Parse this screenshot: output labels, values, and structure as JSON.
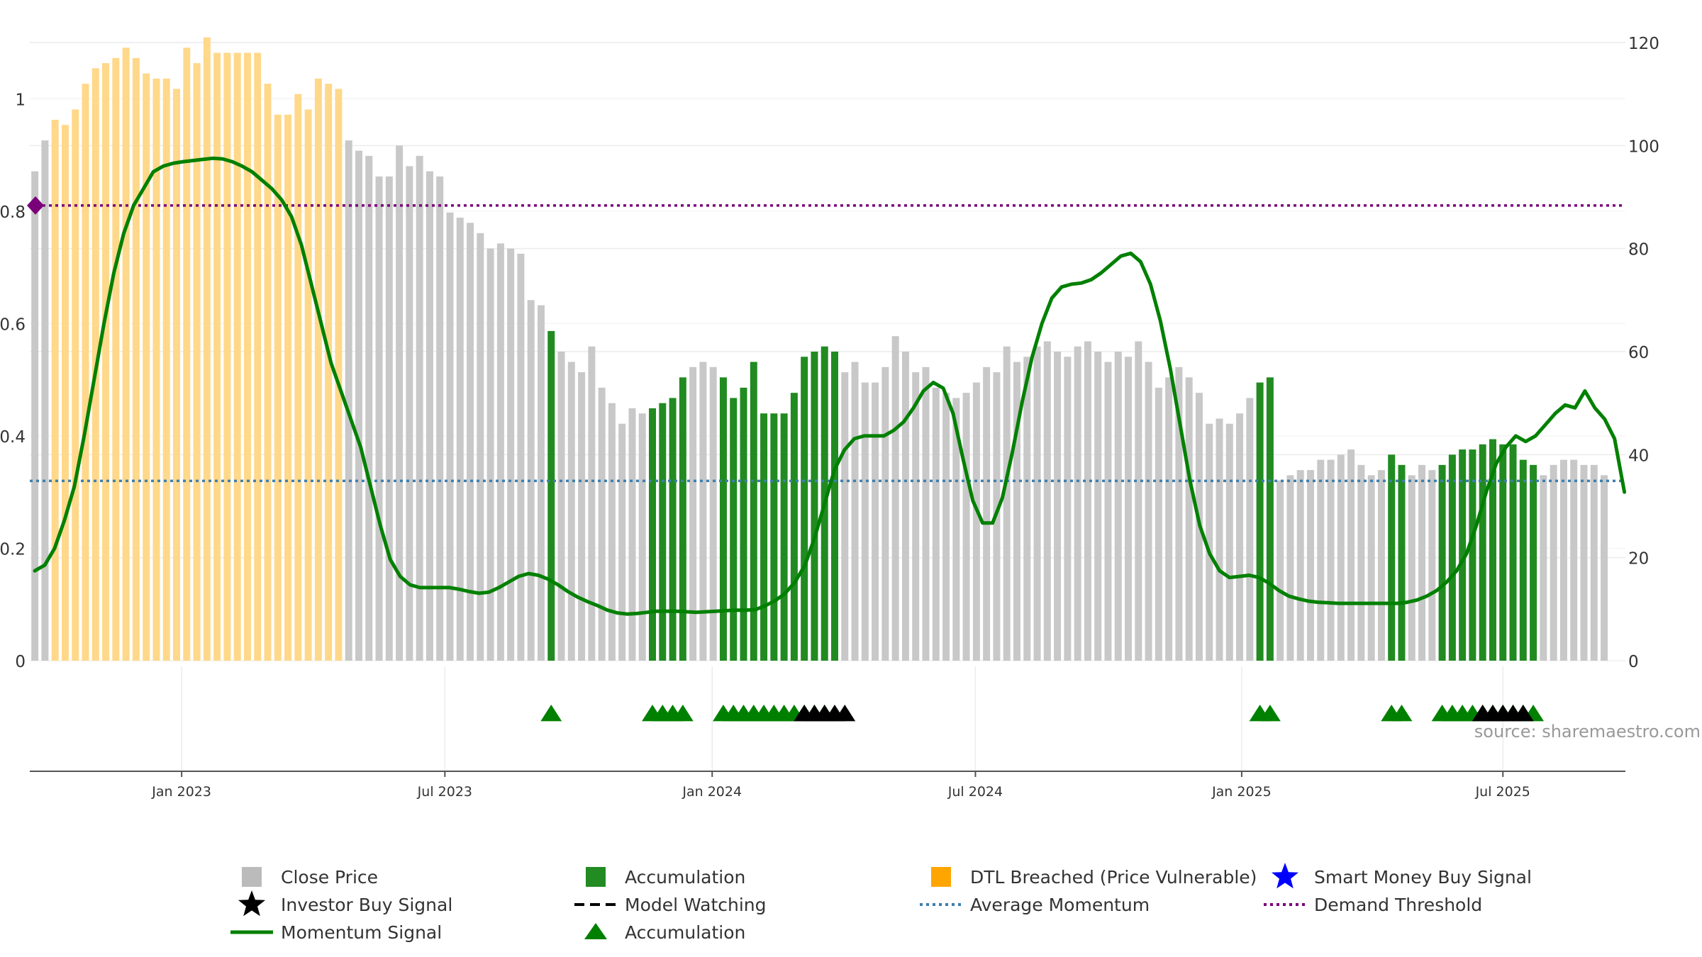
{
  "chart_data": {
    "type": "bar",
    "source_label": "source: sharemaestro.com",
    "y_left": {
      "ticks": [
        "0",
        "0.2",
        "0.4",
        "0.6",
        "0.8",
        "1"
      ],
      "range": [
        0,
        1.1
      ]
    },
    "y_right": {
      "ticks": [
        "0",
        "20",
        "40",
        "60",
        "80",
        "100",
        "120"
      ],
      "range": [
        0,
        120
      ]
    },
    "x_ticks": [
      {
        "label": "Jan 2023",
        "week": 15
      },
      {
        "label": "Jul 2023",
        "week": 41
      },
      {
        "label": "Jan 2024",
        "week": 67.4
      },
      {
        "label": "Jul 2024",
        "week": 93.4
      },
      {
        "label": "Jan 2025",
        "week": 119.7
      },
      {
        "label": "Jul 2025",
        "week": 145.5
      }
    ],
    "x_range": [
      0,
      157.6
    ],
    "close_prices": [
      95,
      101,
      105,
      104,
      107,
      112,
      115,
      116,
      117,
      119,
      117,
      114,
      113,
      113,
      111,
      119,
      116,
      121,
      118,
      118,
      118,
      118,
      118,
      112,
      106,
      106,
      110,
      107,
      113,
      112,
      111,
      101,
      99,
      98,
      94,
      94,
      100,
      96,
      98,
      95,
      94,
      87,
      86,
      85,
      83,
      80,
      81,
      80,
      79,
      70,
      69,
      64,
      60,
      58,
      56,
      61,
      53,
      50,
      46,
      49,
      48,
      49,
      50,
      51,
      55,
      57,
      58,
      57,
      55,
      51,
      53,
      58,
      48,
      48,
      48,
      52,
      59,
      60,
      61,
      60,
      56,
      58,
      54,
      54,
      57,
      63,
      60,
      56,
      57,
      53,
      52,
      51,
      52,
      54,
      57,
      56,
      61,
      58,
      59,
      61,
      62,
      60,
      59,
      61,
      62,
      60,
      58,
      60,
      59,
      62,
      58,
      53,
      55,
      57,
      55,
      52,
      46,
      47,
      46,
      48,
      51,
      54,
      55,
      35,
      36,
      37,
      37,
      39,
      39,
      40,
      41,
      38,
      36,
      37,
      40,
      38,
      36,
      38,
      37,
      38,
      40,
      41,
      41,
      42,
      43,
      42,
      42,
      39,
      38,
      36,
      38,
      39,
      39,
      38,
      38,
      36
    ],
    "bar_states": {
      "orange_weeks": [
        2,
        30
      ],
      "green_weeks": [
        51,
        61,
        62,
        63,
        64,
        68,
        69,
        70,
        71,
        72,
        73,
        74,
        75,
        76,
        77,
        78,
        79,
        121,
        122,
        134,
        135,
        139,
        140,
        141,
        142,
        143,
        144,
        145,
        146,
        147,
        148
      ]
    },
    "momentum_signal": [
      [
        0,
        0.16
      ],
      [
        1,
        0.17
      ],
      [
        2,
        0.2
      ],
      [
        3,
        0.25
      ],
      [
        4,
        0.31
      ],
      [
        5,
        0.4
      ],
      [
        6,
        0.5
      ],
      [
        7,
        0.6
      ],
      [
        8,
        0.69
      ],
      [
        9,
        0.76
      ],
      [
        10,
        0.81
      ],
      [
        11,
        0.84
      ],
      [
        12,
        0.87
      ],
      [
        13,
        0.88
      ],
      [
        14,
        0.885
      ],
      [
        15,
        0.888
      ],
      [
        16,
        0.89
      ],
      [
        17,
        0.892
      ],
      [
        18,
        0.894
      ],
      [
        19,
        0.893
      ],
      [
        20,
        0.888
      ],
      [
        21,
        0.88
      ],
      [
        22,
        0.87
      ],
      [
        23,
        0.855
      ],
      [
        24,
        0.84
      ],
      [
        25,
        0.82
      ],
      [
        26,
        0.79
      ],
      [
        27,
        0.74
      ],
      [
        28,
        0.67
      ],
      [
        29,
        0.6
      ],
      [
        30,
        0.53
      ],
      [
        31,
        0.48
      ],
      [
        32,
        0.43
      ],
      [
        33,
        0.38
      ],
      [
        34,
        0.31
      ],
      [
        35,
        0.24
      ],
      [
        36,
        0.18
      ],
      [
        37,
        0.15
      ],
      [
        38,
        0.135
      ],
      [
        39,
        0.13
      ],
      [
        40,
        0.13
      ],
      [
        41,
        0.13
      ],
      [
        42,
        0.13
      ],
      [
        43,
        0.127
      ],
      [
        44,
        0.123
      ],
      [
        45,
        0.12
      ],
      [
        46,
        0.122
      ],
      [
        47,
        0.13
      ],
      [
        48,
        0.14
      ],
      [
        49,
        0.15
      ],
      [
        50,
        0.155
      ],
      [
        51,
        0.152
      ],
      [
        52,
        0.145
      ],
      [
        53,
        0.135
      ],
      [
        54,
        0.123
      ],
      [
        55,
        0.113
      ],
      [
        56,
        0.105
      ],
      [
        57,
        0.098
      ],
      [
        58,
        0.09
      ],
      [
        59,
        0.085
      ],
      [
        60,
        0.083
      ],
      [
        61,
        0.084
      ],
      [
        62,
        0.086
      ],
      [
        63,
        0.088
      ],
      [
        64,
        0.088
      ],
      [
        65,
        0.088
      ],
      [
        66,
        0.087
      ],
      [
        67,
        0.086
      ],
      [
        68,
        0.087
      ],
      [
        69,
        0.088
      ],
      [
        70,
        0.089
      ],
      [
        71,
        0.09
      ],
      [
        72,
        0.09
      ],
      [
        73,
        0.091
      ],
      [
        74,
        0.098
      ],
      [
        75,
        0.107
      ],
      [
        76,
        0.12
      ],
      [
        77,
        0.14
      ],
      [
        78,
        0.17
      ],
      [
        79,
        0.22
      ],
      [
        80,
        0.28
      ],
      [
        81,
        0.34
      ],
      [
        82,
        0.375
      ],
      [
        83,
        0.395
      ],
      [
        84,
        0.4
      ],
      [
        85,
        0.4
      ],
      [
        86,
        0.4
      ],
      [
        87,
        0.41
      ],
      [
        88,
        0.425
      ],
      [
        89,
        0.45
      ],
      [
        90,
        0.48
      ],
      [
        91,
        0.495
      ],
      [
        92,
        0.485
      ],
      [
        93,
        0.44
      ],
      [
        94,
        0.36
      ],
      [
        95,
        0.285
      ],
      [
        96,
        0.245
      ],
      [
        97,
        0.245
      ],
      [
        98,
        0.29
      ],
      [
        99,
        0.37
      ],
      [
        100,
        0.46
      ],
      [
        101,
        0.54
      ],
      [
        102,
        0.6
      ],
      [
        103,
        0.645
      ],
      [
        104,
        0.665
      ],
      [
        105,
        0.67
      ],
      [
        106,
        0.672
      ],
      [
        107,
        0.678
      ],
      [
        108,
        0.69
      ],
      [
        109,
        0.705
      ],
      [
        110,
        0.72
      ],
      [
        111,
        0.725
      ],
      [
        112,
        0.71
      ],
      [
        113,
        0.67
      ],
      [
        114,
        0.605
      ],
      [
        115,
        0.52
      ],
      [
        116,
        0.42
      ],
      [
        117,
        0.32
      ],
      [
        118,
        0.24
      ],
      [
        119,
        0.19
      ],
      [
        120,
        0.16
      ],
      [
        121,
        0.148
      ],
      [
        122,
        0.15
      ],
      [
        123,
        0.152
      ],
      [
        124,
        0.148
      ],
      [
        125,
        0.138
      ],
      [
        126,
        0.125
      ],
      [
        127,
        0.115
      ],
      [
        128,
        0.11
      ],
      [
        129,
        0.106
      ],
      [
        130,
        0.104
      ],
      [
        131,
        0.103
      ],
      [
        132,
        0.102
      ],
      [
        133,
        0.102
      ],
      [
        134,
        0.102
      ],
      [
        135,
        0.102
      ],
      [
        136,
        0.102
      ],
      [
        137,
        0.102
      ],
      [
        138,
        0.102
      ],
      [
        139,
        0.104
      ],
      [
        140,
        0.108
      ],
      [
        141,
        0.115
      ],
      [
        142,
        0.125
      ],
      [
        143,
        0.14
      ],
      [
        144,
        0.16
      ],
      [
        145,
        0.19
      ],
      [
        146,
        0.24
      ],
      [
        147,
        0.3
      ],
      [
        148,
        0.35
      ],
      [
        149,
        0.38
      ],
      [
        150,
        0.4
      ],
      [
        151,
        0.39
      ],
      [
        152,
        0.4
      ],
      [
        153,
        0.42
      ],
      [
        154,
        0.44
      ],
      [
        155,
        0.455
      ],
      [
        156,
        0.45
      ],
      [
        157,
        0.48
      ],
      [
        158,
        0.45
      ],
      [
        159,
        0.43
      ],
      [
        160,
        0.395
      ],
      [
        161,
        0.3
      ]
    ],
    "average_momentum": 0.32,
    "demand_threshold": 0.81,
    "demand_marker_value": 0.81,
    "accumulation_markers_green": [
      51,
      61,
      62,
      63,
      64,
      68,
      69,
      70,
      71,
      72,
      73,
      74,
      75,
      76,
      77,
      78,
      121,
      122,
      134,
      135,
      139,
      140,
      141,
      142,
      143,
      144,
      145,
      146,
      147,
      148
    ],
    "investor_buy_markers_black": [
      76,
      77,
      78,
      79,
      80,
      143,
      144,
      145,
      146,
      147
    ],
    "colors": {
      "close_price": "#c8c8c8",
      "accumulation": "#218b21",
      "dtl_breached": "#ffd88a",
      "momentum": "#008000",
      "average_momentum": "#3d7fae",
      "demand_threshold": "#7a007a",
      "smart_money": "#0000ff",
      "marker_black": "#000000"
    },
    "legend": [
      {
        "label": "Close Price",
        "symbol": "square",
        "color": "#bbbbbb"
      },
      {
        "label": "Accumulation",
        "symbol": "square",
        "color": "#228b22"
      },
      {
        "label": "DTL Breached (Price Vulnerable)",
        "symbol": "square",
        "color": "#ffa500"
      },
      {
        "label": "Smart Money Buy Signal",
        "symbol": "star",
        "color": "#0000ff"
      },
      {
        "label": "Investor Buy Signal",
        "symbol": "star",
        "color": "#000000"
      },
      {
        "label": "Model Watching",
        "symbol": "dash",
        "color": "#000000"
      },
      {
        "label": "Average Momentum",
        "symbol": "dot",
        "color": "#3d7fae"
      },
      {
        "label": "Demand Threshold",
        "symbol": "dot",
        "color": "#7a007a"
      },
      {
        "label": "Momentum Signal",
        "symbol": "line",
        "color": "#008000"
      },
      {
        "label": "Accumulation",
        "symbol": "triangle",
        "color": "#008000"
      }
    ]
  }
}
